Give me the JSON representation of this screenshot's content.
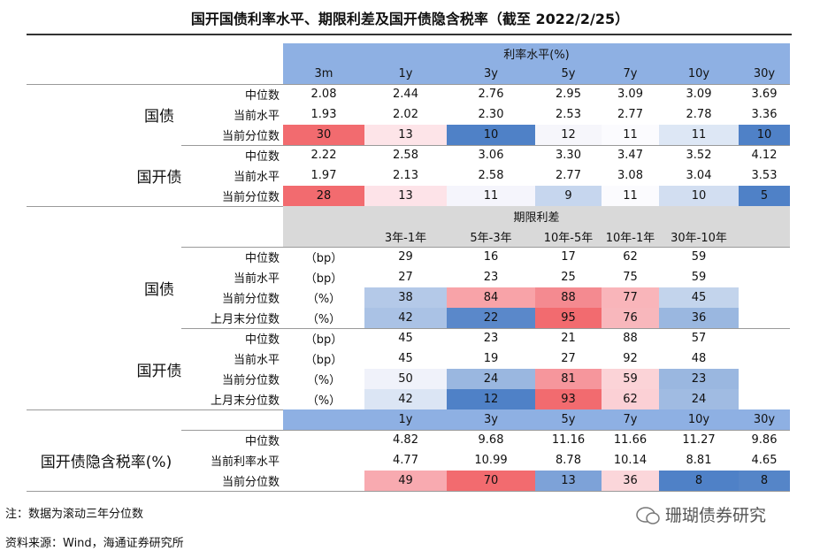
{
  "title": "国开国债利率水平、期限利差及国开债隐含税率（截至 2022/2/25）",
  "note": "注：数据为滚动三年分位数",
  "source": "资料来源：Wind，海通证券研究所",
  "watermark": "珊瑚债券研究",
  "section1": {
    "header": "利率水平(%)",
    "band": "#8eb0e3",
    "columns": [
      "3m",
      "1y",
      "3y",
      "5y",
      "7y",
      "10y",
      "30y"
    ],
    "groups": [
      {
        "name": "国债",
        "rows": [
          {
            "label": "中位数",
            "cells": [
              "2.08",
              "2.44",
              "2.76",
              "2.95",
              "3.09",
              "3.09",
              "3.69"
            ]
          },
          {
            "label": "当前水平",
            "cells": [
              "1.93",
              "2.02",
              "2.30",
              "2.53",
              "2.77",
              "2.78",
              "3.36"
            ]
          },
          {
            "label": "当前分位数",
            "cells": [
              "30",
              "13",
              "10",
              "12",
              "11",
              "11",
              "10"
            ],
            "fills": [
              "#f26b6f",
              "#fde4e8",
              "#4f81c7",
              "#f6f6fb",
              "#fbfbfe",
              "#dde7f5",
              "#4f81c7"
            ]
          }
        ]
      },
      {
        "name": "国开债",
        "rows": [
          {
            "label": "中位数",
            "cells": [
              "2.22",
              "2.58",
              "3.06",
              "3.30",
              "3.47",
              "3.52",
              "4.12"
            ]
          },
          {
            "label": "当前水平",
            "cells": [
              "1.97",
              "2.13",
              "2.58",
              "2.77",
              "3.08",
              "3.04",
              "3.53"
            ]
          },
          {
            "label": "当前分位数",
            "cells": [
              "28",
              "13",
              "11",
              "9",
              "11",
              "10",
              "5"
            ],
            "fills": [
              "#f26b6f",
              "#fde3e8",
              "#f5f5fc",
              "#c6d6ee",
              "#fbfbfe",
              "#d2def1",
              "#4f81c7"
            ]
          }
        ]
      }
    ]
  },
  "section2": {
    "header": "期限利差",
    "band": "#d9d9d9",
    "columns": [
      "3年-1年",
      "5年-3年",
      "10年-5年",
      "10年-1年",
      "30年-10年"
    ],
    "groups": [
      {
        "name": "国债",
        "rows": [
          {
            "label": "中位数",
            "unit": "（bp）",
            "cells": [
              "29",
              "16",
              "17",
              "62",
              "59"
            ]
          },
          {
            "label": "当前水平",
            "unit": "（bp）",
            "cells": [
              "27",
              "23",
              "25",
              "75",
              "59"
            ]
          },
          {
            "label": "当前分位数",
            "unit": "（%）",
            "cells": [
              "38",
              "84",
              "88",
              "77",
              "45"
            ],
            "fills": [
              "#b4c9e8",
              "#f8a3a8",
              "#f48a90",
              "#f9b5ba",
              "#c3d4ec"
            ]
          },
          {
            "label": "上月末分位数",
            "unit": "（%）",
            "cells": [
              "42",
              "22",
              "95",
              "76",
              "36"
            ],
            "fills": [
              "#aac2e5",
              "#5a88ca",
              "#f26b6f",
              "#f8b7bc",
              "#9ab7e0"
            ]
          }
        ]
      },
      {
        "name": "国开债",
        "rows": [
          {
            "label": "中位数",
            "unit": "（bp）",
            "cells": [
              "45",
              "23",
              "21",
              "88",
              "57"
            ]
          },
          {
            "label": "当前水平",
            "unit": "（bp）",
            "cells": [
              "45",
              "19",
              "27",
              "92",
              "48"
            ]
          },
          {
            "label": "当前分位数",
            "unit": "（%）",
            "cells": [
              "50",
              "24",
              "81",
              "59",
              "23"
            ],
            "fills": [
              "#f0f2fa",
              "#9ab7e0",
              "#f6969c",
              "#fbd3d7",
              "#9ab7e0"
            ]
          },
          {
            "label": "上月末分位数",
            "unit": "（%）",
            "cells": [
              "42",
              "12",
              "93",
              "62",
              "24"
            ],
            "fills": [
              "#dbe5f4",
              "#4f81c7",
              "#f26b6f",
              "#fbd0d5",
              "#a0bbe2"
            ]
          }
        ]
      }
    ]
  },
  "section3": {
    "name": "国开债隐含税率(%)",
    "band": "#8eb0e3",
    "columns": [
      "1y",
      "3y",
      "5y",
      "7y",
      "10y",
      "30y"
    ],
    "rows": [
      {
        "label": "中位数",
        "cells": [
          "4.82",
          "9.68",
          "11.16",
          "11.66",
          "11.27",
          "9.86"
        ]
      },
      {
        "label": "当前利率水平",
        "cells": [
          "4.77",
          "10.99",
          "8.78",
          "10.14",
          "8.81",
          "4.65"
        ]
      },
      {
        "label": "当前分位数",
        "cells": [
          "49",
          "70",
          "13",
          "36",
          "8",
          "8"
        ],
        "fills": [
          "#f8aab0",
          "#f26b6f",
          "#7da2d8",
          "#fbd6da",
          "#4f81c7",
          "#5585c8"
        ]
      }
    ]
  }
}
